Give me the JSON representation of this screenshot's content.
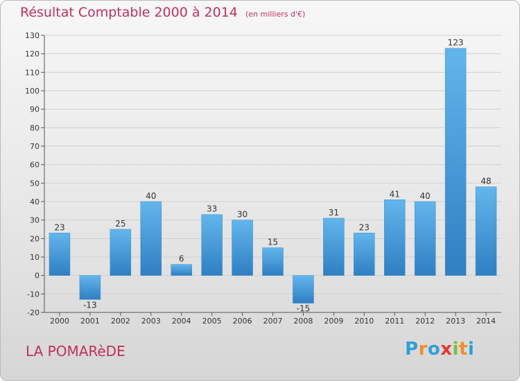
{
  "header": {
    "title": "Résultat Comptable 2000 à 2014",
    "unit": "(en milliers d'€)"
  },
  "commune": "LA POMARèDE",
  "logo": {
    "text": "Proxiti",
    "letter_colors": [
      "#2f9fd8",
      "#f28c28",
      "#2f9fd8",
      "#e8382f",
      "#7cbf3a",
      "#f28c28",
      "#2f9fd8"
    ]
  },
  "colors": {
    "title": "#c0305a",
    "bar_top": "#63b5ec",
    "bar_bottom": "#2f7fc2",
    "grid": "#d0d0d0",
    "axis": "#555555"
  },
  "chart_data": {
    "type": "bar",
    "title": "Résultat Comptable 2000 à 2014",
    "unit": "(en milliers d'€)",
    "categories": [
      "2000",
      "2001",
      "2002",
      "2003",
      "2004",
      "2005",
      "2006",
      "2007",
      "2008",
      "2009",
      "2010",
      "2011",
      "2012",
      "2013",
      "2014"
    ],
    "values": [
      23,
      -13,
      25,
      40,
      6,
      33,
      30,
      15,
      -15,
      31,
      23,
      41,
      40,
      123,
      48
    ],
    "ylim": [
      -20,
      130
    ],
    "yticks": [
      -20,
      -10,
      0,
      10,
      20,
      30,
      40,
      50,
      60,
      70,
      80,
      90,
      100,
      110,
      120,
      130
    ],
    "grid": true,
    "legend": "none"
  }
}
